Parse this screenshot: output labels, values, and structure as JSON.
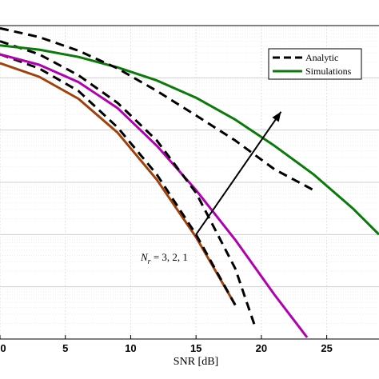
{
  "chart_data": {
    "type": "line",
    "title": "",
    "xlabel": "SNR [dB]",
    "ylabel": "",
    "xlim": [
      0,
      29
    ],
    "xticks": [
      0,
      5,
      10,
      15,
      20,
      25
    ],
    "ylog": true,
    "ylim_decades": [
      -6,
      0
    ],
    "grid": true,
    "legend_position": "top-right",
    "legend": [
      {
        "label": "Analytic",
        "style": "dashed",
        "color": "#000000"
      },
      {
        "label": "Simulations",
        "style": "solid",
        "color": "#0a7a0a"
      }
    ],
    "annotation": {
      "text": "N_r = 3, 2, 1",
      "arrow_from": [
        15,
        -4.0
      ],
      "arrow_to": [
        21.5,
        -1.65
      ]
    },
    "series": [
      {
        "group": "Nr=3",
        "kind": "simulation",
        "color": "#a0400a",
        "x": [
          0,
          3,
          6,
          9,
          12,
          15,
          18
        ],
        "log10y": [
          -0.72,
          -0.98,
          -1.4,
          -2.05,
          -2.95,
          -4.05,
          -5.35
        ]
      },
      {
        "group": "Nr=3",
        "kind": "analytic",
        "color": "#000000",
        "x": [
          0,
          3,
          6,
          9,
          12,
          15,
          18
        ],
        "log10y": [
          -0.55,
          -0.82,
          -1.25,
          -1.95,
          -2.85,
          -4.0,
          -5.35
        ]
      },
      {
        "group": "Nr=2",
        "kind": "simulation",
        "color": "#b000b0",
        "x": [
          0,
          3,
          6,
          9,
          12,
          15,
          18,
          21,
          23.5
        ],
        "log10y": [
          -0.55,
          -0.75,
          -1.08,
          -1.58,
          -2.3,
          -3.15,
          -4.1,
          -5.15,
          -5.97
        ]
      },
      {
        "group": "Nr=2",
        "kind": "analytic",
        "color": "#000000",
        "x": [
          0,
          3,
          6,
          9,
          12,
          15,
          18,
          19.5
        ],
        "log10y": [
          -0.3,
          -0.55,
          -0.95,
          -1.48,
          -2.2,
          -3.2,
          -4.65,
          -5.75
        ]
      },
      {
        "group": "Nr=1",
        "kind": "simulation",
        "color": "#0a7a0a",
        "x": [
          0,
          3,
          6,
          9,
          12,
          15,
          18,
          21,
          24,
          27,
          29
        ],
        "log10y": [
          -0.38,
          -0.46,
          -0.6,
          -0.8,
          -1.05,
          -1.38,
          -1.8,
          -2.3,
          -2.85,
          -3.5,
          -4.0
        ]
      },
      {
        "group": "Nr=1",
        "kind": "analytic",
        "color": "#000000",
        "x": [
          0,
          3,
          6,
          9,
          12,
          15,
          18,
          21,
          24
        ],
        "log10y": [
          -0.05,
          -0.22,
          -0.48,
          -0.82,
          -1.25,
          -1.72,
          -2.2,
          -2.75,
          -3.15
        ]
      }
    ]
  }
}
